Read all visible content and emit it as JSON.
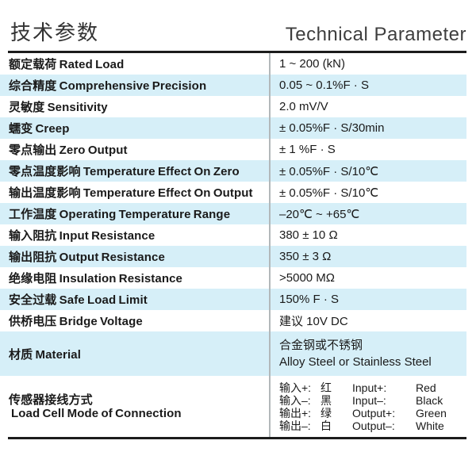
{
  "header": {
    "title_cn": "技术参数",
    "title_en": "Technical Parameter"
  },
  "colors": {
    "stripe": "#d6eff8",
    "rule": "#1c1c1c",
    "divider": "#b2b8ba",
    "text": "#1a1a1a"
  },
  "table": {
    "rows": [
      {
        "label": "额定载荷 Rated Load",
        "value": "1 ~ 200 (kN)"
      },
      {
        "label": "综合精度 Comprehensive Precision",
        "value": "0.05 ~ 0.1%F · S"
      },
      {
        "label": "灵敏度 Sensitivity",
        "value": "2.0 mV/V"
      },
      {
        "label": "蠕变 Creep",
        "value": "± 0.05%F · S/30min"
      },
      {
        "label": "零点输出 Zero Output",
        "value": "± 1 %F · S"
      },
      {
        "label": "零点温度影响 Temperature Effect On Zero",
        "value": "± 0.05%F · S/10℃"
      },
      {
        "label": "输出温度影响 Temperature Effect On Output",
        "value": "± 0.05%F · S/10℃"
      },
      {
        "label": "工作温度 Operating Temperature Range",
        "value": "–20℃ ~ +65℃"
      },
      {
        "label": "输入阻抗 Input Resistance",
        "value": "380 ± 10 Ω"
      },
      {
        "label": "输出阻抗 Output Resistance",
        "value": "350 ± 3 Ω"
      },
      {
        "label": "绝缘电阻 Insulation Resistance",
        "value": ">5000 MΩ"
      },
      {
        "label": "安全过载 Safe Load Limit",
        "value": "150% F · S"
      },
      {
        "label": "供桥电压 Bridge Voltage",
        "value": "建议 10V DC"
      }
    ],
    "material_row": {
      "label": "材质 Material",
      "value_line1": "合金钢或不锈钢",
      "value_line2": "Alloy Steel or Stainless Steel"
    },
    "connection_row": {
      "label_line1": "传感器接线方式",
      "label_line2": "Load Cell Mode of Connection",
      "wiring": [
        {
          "cn_label": "输入+:",
          "cn_color": "红",
          "en_label": "Input+:",
          "en_color": "Red"
        },
        {
          "cn_label": "输入–:",
          "cn_color": "黑",
          "en_label": "Input–:",
          "en_color": "Black"
        },
        {
          "cn_label": "输出+:",
          "cn_color": "绿",
          "en_label": "Output+:",
          "en_color": "Green"
        },
        {
          "cn_label": "输出–:",
          "cn_color": "白",
          "en_label": "Output–:",
          "en_color": "White"
        }
      ]
    }
  }
}
